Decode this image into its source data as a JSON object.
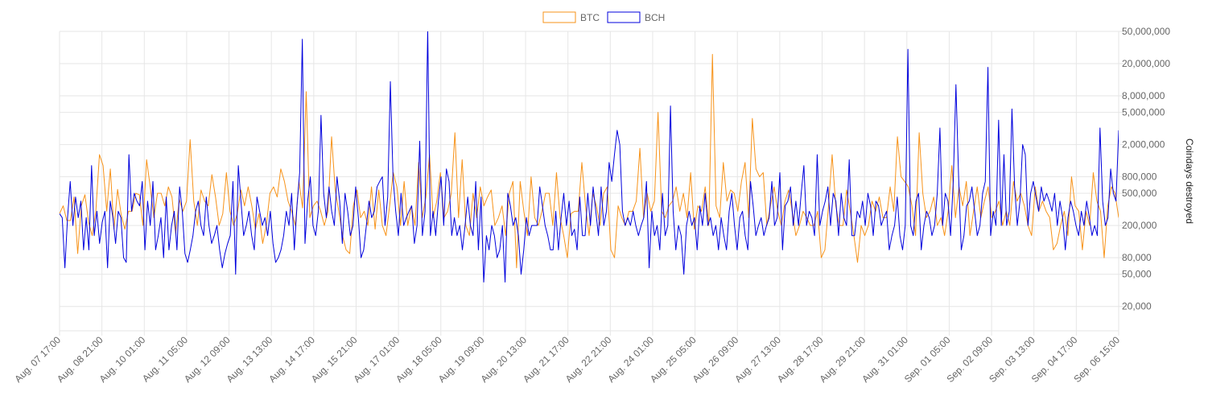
{
  "chart_data": {
    "type": "line",
    "ylabel": "Coindays destroyed",
    "yscale": "log",
    "ylim": [
      10000,
      50000000
    ],
    "grid": true,
    "legend": "top-center",
    "colors": {
      "BTC": "#f7931a",
      "BCH": "#0000dd",
      "grid": "#e6e6e6"
    },
    "y_ticks": [
      {
        "value": 50000000,
        "label": "50,000,000"
      },
      {
        "value": 20000000,
        "label": "20,000,000"
      },
      {
        "value": 8000000,
        "label": "8,000,000"
      },
      {
        "value": 5000000,
        "label": "5,000,000"
      },
      {
        "value": 2000000,
        "label": "2,000,000"
      },
      {
        "value": 800000,
        "label": "800,000"
      },
      {
        "value": 500000,
        "label": "500,000"
      },
      {
        "value": 200000,
        "label": "200,000"
      },
      {
        "value": 80000,
        "label": "80,000"
      },
      {
        "value": 50000,
        "label": "50,000"
      },
      {
        "value": 20000,
        "label": "20,000"
      }
    ],
    "x_tick_labels": [
      "Aug. 07 17:00",
      "Aug. 08 21:00",
      "Aug. 10 01:00",
      "Aug. 11 05:00",
      "Aug. 12 09:00",
      "Aug. 13 13:00",
      "Aug. 14 17:00",
      "Aug. 15 21:00",
      "Aug. 17 01:00",
      "Aug. 18 05:00",
      "Aug. 19 09:00",
      "Aug. 20 13:00",
      "Aug. 21 17:00",
      "Aug. 22 21:00",
      "Aug. 24 01:00",
      "Aug. 25 05:00",
      "Aug. 26 09:00",
      "Aug. 27 13:00",
      "Aug. 28 17:00",
      "Aug. 29 21:00",
      "Aug. 31 01:00",
      "Sep. 01 05:00",
      "Sep. 02 09:00",
      "Sep. 03 13:00",
      "Sep. 04 17:00",
      "Sep. 06 15:00"
    ],
    "series": [
      {
        "name": "BTC",
        "values": [
          280000,
          350000,
          230000,
          230000,
          450000,
          90000,
          350000,
          480000,
          220000,
          150000,
          300000,
          1500000,
          1100000,
          300000,
          1000000,
          180000,
          560000,
          270000,
          180000,
          300000,
          300000,
          500000,
          480000,
          200000,
          1300000,
          600000,
          250000,
          500000,
          500000,
          350000,
          600000,
          450000,
          160000,
          420000,
          300000,
          400000,
          2300000,
          400000,
          200000,
          550000,
          400000,
          350000,
          850000,
          450000,
          200000,
          280000,
          900000,
          300000,
          200000,
          280000,
          550000,
          350000,
          600000,
          350000,
          180000,
          280000,
          120000,
          200000,
          500000,
          600000,
          450000,
          1000000,
          700000,
          400000,
          300000,
          200000,
          700000,
          330000,
          9000000,
          250000,
          350000,
          400000,
          300000,
          200000,
          300000,
          2500000,
          550000,
          300000,
          150000,
          100000,
          90000,
          350000,
          550000,
          250000,
          300000,
          200000,
          600000,
          180000,
          550000,
          200000,
          150000,
          350000,
          900000,
          600000,
          200000,
          700000,
          200000,
          350000,
          200000,
          1200000,
          250000,
          450000,
          1500000,
          250000,
          400000,
          900000,
          250000,
          300000,
          500000,
          2800000,
          250000,
          1300000,
          200000,
          150000,
          500000,
          250000,
          600000,
          350000,
          450000,
          550000,
          200000,
          250000,
          350000,
          150000,
          500000,
          700000,
          60000,
          700000,
          300000,
          150000,
          800000,
          250000,
          200000,
          300000,
          500000,
          500000,
          200000,
          900000,
          250000,
          150000,
          80000,
          280000,
          300000,
          300000,
          1200000,
          350000,
          150000,
          500000,
          350000,
          200000,
          500000,
          600000,
          100000,
          80000,
          350000,
          250000,
          200000,
          300000,
          300000,
          400000,
          1800000,
          250000,
          500000,
          300000,
          400000,
          5000000,
          300000,
          250000,
          350000,
          400000,
          600000,
          300000,
          500000,
          250000,
          900000,
          180000,
          350000,
          300000,
          600000,
          200000,
          26000000,
          350000,
          250000,
          1200000,
          400000,
          550000,
          500000,
          300000,
          700000,
          1200000,
          250000,
          4200000,
          1000000,
          800000,
          900000,
          200000,
          350000,
          600000,
          300000,
          200000,
          400000,
          550000,
          300000,
          150000,
          200000,
          300000,
          250000,
          200000,
          200000,
          300000,
          80000,
          100000,
          350000,
          1500000,
          350000,
          200000,
          200000,
          550000,
          300000,
          150000,
          70000,
          200000,
          150000,
          200000,
          400000,
          300000,
          450000,
          250000,
          250000,
          600000,
          300000,
          2500000,
          800000,
          700000,
          600000,
          350000,
          150000,
          2800000,
          500000,
          250000,
          300000,
          450000,
          200000,
          250000,
          150000,
          300000,
          1100000,
          250000,
          600000,
          350000,
          700000,
          150000,
          300000,
          600000,
          250000,
          400000,
          600000,
          250000,
          300000,
          400000,
          200000,
          300000,
          200000,
          700000,
          400000,
          500000,
          350000,
          200000,
          150000,
          600000,
          300000,
          400000,
          300000,
          250000,
          100000,
          120000,
          200000,
          300000,
          150000,
          800000,
          350000,
          300000,
          100000,
          300000,
          200000,
          900000,
          400000,
          300000,
          80000,
          350000,
          600000,
          500000,
          250000
        ]
      },
      {
        "name": "BCH",
        "values": [
          280000,
          250000,
          60000,
          250000,
          700000,
          200000,
          450000,
          250000,
          400000,
          100000,
          250000,
          100000,
          1100000,
          150000,
          300000,
          120000,
          220000,
          300000,
          60000,
          400000,
          250000,
          120000,
          300000,
          250000,
          80000,
          70000,
          1500000,
          300000,
          500000,
          400000,
          350000,
          700000,
          100000,
          400000,
          200000,
          700000,
          100000,
          150000,
          250000,
          80000,
          450000,
          100000,
          200000,
          300000,
          100000,
          600000,
          300000,
          90000,
          70000,
          100000,
          150000,
          300000,
          400000,
          200000,
          150000,
          450000,
          200000,
          120000,
          150000,
          200000,
          100000,
          60000,
          90000,
          120000,
          150000,
          700000,
          50000,
          1100000,
          400000,
          150000,
          200000,
          300000,
          150000,
          100000,
          450000,
          300000,
          200000,
          250000,
          150000,
          300000,
          120000,
          70000,
          80000,
          100000,
          150000,
          300000,
          200000,
          500000,
          100000,
          350000,
          900000,
          40000000,
          120000,
          400000,
          800000,
          200000,
          150000,
          300000,
          4600000,
          500000,
          250000,
          600000,
          300000,
          200000,
          800000,
          400000,
          120000,
          500000,
          300000,
          150000,
          200000,
          600000,
          250000,
          80000,
          100000,
          200000,
          400000,
          250000,
          300000,
          600000,
          700000,
          800000,
          200000,
          450000,
          12000000,
          800000,
          300000,
          150000,
          500000,
          200000,
          250000,
          300000,
          350000,
          120000,
          200000,
          2200000,
          150000,
          300000,
          55000000,
          150000,
          300000,
          150000,
          400000,
          800000,
          200000,
          1000000,
          700000,
          150000,
          250000,
          150000,
          200000,
          100000,
          200000,
          450000,
          200000,
          150000,
          700000,
          100000,
          450000,
          40000,
          150000,
          100000,
          200000,
          150000,
          80000,
          100000,
          200000,
          40000,
          500000,
          350000,
          200000,
          250000,
          150000,
          50000,
          100000,
          250000,
          150000,
          200000,
          200000,
          200000,
          600000,
          350000,
          200000,
          150000,
          100000,
          100000,
          300000,
          100000,
          250000,
          500000,
          200000,
          400000,
          150000,
          180000,
          100000,
          450000,
          150000,
          150000,
          500000,
          200000,
          600000,
          300000,
          150000,
          600000,
          200000,
          300000,
          1200000,
          700000,
          1500000,
          3000000,
          2000000,
          300000,
          200000,
          250000,
          200000,
          300000,
          200000,
          150000,
          200000,
          250000,
          700000,
          60000,
          300000,
          150000,
          200000,
          100000,
          500000,
          150000,
          200000,
          6000000,
          300000,
          100000,
          200000,
          150000,
          50000,
          200000,
          300000,
          200000,
          250000,
          100000,
          350000,
          200000,
          500000,
          200000,
          250000,
          150000,
          200000,
          100000,
          250000,
          150000,
          100000,
          300000,
          500000,
          200000,
          100000,
          250000,
          300000,
          150000,
          100000,
          700000,
          350000,
          150000,
          200000,
          250000,
          150000,
          200000,
          250000,
          700000,
          200000,
          250000,
          900000,
          100000,
          350000,
          400000,
          600000,
          200000,
          400000,
          200000,
          500000,
          1100000,
          200000,
          300000,
          250000,
          150000,
          1500000,
          200000,
          300000,
          400000,
          600000,
          200000,
          500000,
          400000,
          150000,
          500000,
          250000,
          200000,
          1300000,
          150000,
          150000,
          300000,
          250000,
          400000,
          200000,
          500000,
          350000,
          150000,
          400000,
          350000,
          200000,
          250000,
          300000,
          100000,
          150000,
          200000,
          450000,
          150000,
          100000,
          200000,
          30000000,
          200000,
          150000,
          400000,
          500000,
          100000,
          200000,
          300000,
          250000,
          150000,
          200000,
          500000,
          3200000,
          200000,
          500000,
          400000,
          150000,
          700000,
          11000000,
          800000,
          100000,
          150000,
          350000,
          400000,
          600000,
          300000,
          150000,
          200000,
          500000,
          700000,
          18000000,
          150000,
          300000,
          200000,
          4000000,
          200000,
          1500000,
          200000,
          300000,
          5500000,
          600000,
          200000,
          400000,
          2000000,
          1500000,
          200000,
          500000,
          700000,
          450000,
          300000,
          600000,
          400000,
          500000,
          400000,
          300000,
          500000,
          200000,
          400000,
          250000,
          100000,
          250000,
          400000,
          300000,
          200000,
          150000,
          300000,
          200000,
          400000,
          250000,
          150000,
          200000,
          150000,
          3200000,
          400000,
          200000,
          250000,
          1000000,
          500000,
          400000,
          3000000
        ]
      }
    ]
  }
}
